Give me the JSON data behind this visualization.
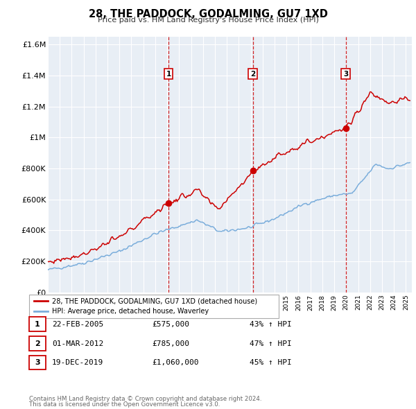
{
  "title": "28, THE PADDOCK, GODALMING, GU7 1XD",
  "subtitle": "Price paid vs. HM Land Registry's House Price Index (HPI)",
  "legend_line1": "28, THE PADDOCK, GODALMING, GU7 1XD (detached house)",
  "legend_line2": "HPI: Average price, detached house, Waverley",
  "sale_color": "#cc0000",
  "hpi_color": "#7aaddb",
  "transactions": [
    {
      "num": 1,
      "date": "22-FEB-2005",
      "date_decimal": 2005.12,
      "price": 575000,
      "pct": "43% ↑ HPI"
    },
    {
      "num": 2,
      "date": "01-MAR-2012",
      "date_decimal": 2012.17,
      "price": 785000,
      "pct": "47% ↑ HPI"
    },
    {
      "num": 3,
      "date": "19-DEC-2019",
      "date_decimal": 2019.96,
      "price": 1060000,
      "pct": "45% ↑ HPI"
    }
  ],
  "footer_line1": "Contains HM Land Registry data © Crown copyright and database right 2024.",
  "footer_line2": "This data is licensed under the Open Government Licence v3.0.",
  "ylim": [
    0,
    1650000
  ],
  "xlim_start": 1995.0,
  "xlim_end": 2025.5,
  "yticks": [
    0,
    200000,
    400000,
    600000,
    800000,
    1000000,
    1200000,
    1400000,
    1600000
  ],
  "ytick_labels": [
    "£0",
    "£200K",
    "£400K",
    "£600K",
    "£800K",
    "£1M",
    "£1.2M",
    "£1.4M",
    "£1.6M"
  ],
  "plot_bg_color": "#e8eef5",
  "grid_color": "#ffffff"
}
